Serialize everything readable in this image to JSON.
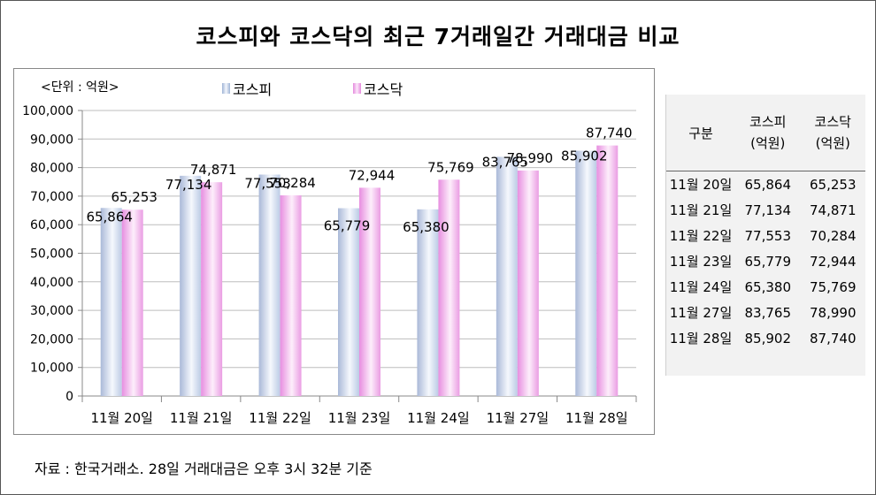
{
  "page": {
    "title": "코스피와 코스닥의 최근 7거래일간 거래대금 비교",
    "source": "자료 : 한국거래소. 28일 거래대금은 오후 3시 32분 기준"
  },
  "chart_data": {
    "type": "bar",
    "unit_label": "<단위 : 억원>",
    "categories": [
      "11월 20일",
      "11월 21일",
      "11월 22일",
      "11월 23일",
      "11월 24일",
      "11월 27일",
      "11월 28일"
    ],
    "series": [
      {
        "name": "코스피",
        "values": [
          65864,
          77134,
          77553,
          65779,
          65380,
          83765,
          85902
        ],
        "color": "#c5d4ea"
      },
      {
        "name": "코스닥",
        "values": [
          65253,
          74871,
          70284,
          72944,
          75769,
          78990,
          87740
        ],
        "color": "#f0a6e8"
      }
    ],
    "value_labels": {
      "kospi": [
        "65,864",
        "77,134",
        "77,553",
        "65,779",
        "65,380",
        "83,765",
        "85,902"
      ],
      "kosdaq": [
        "65,253",
        "74,871",
        "70,284",
        "72,944",
        "75,769",
        "78,990",
        "87,740"
      ]
    },
    "y_ticks": [
      "0",
      "10,000",
      "20,000",
      "30,000",
      "40,000",
      "50,000",
      "60,000",
      "70,000",
      "80,000",
      "90,000",
      "100,000"
    ],
    "ylim": [
      0,
      100000
    ],
    "grid": true,
    "legend": "top"
  },
  "table": {
    "header": {
      "gubun": "구분",
      "kospi_name": "코스피",
      "kospi_unit": "(억원)",
      "kosdaq_name": "코스닥",
      "kosdaq_unit": "(억원)"
    },
    "rows": [
      {
        "date": "11월 20일",
        "kospi": "65,864",
        "kosdaq": "65,253"
      },
      {
        "date": "11월 21일",
        "kospi": "77,134",
        "kosdaq": "74,871"
      },
      {
        "date": "11월 22일",
        "kospi": "77,553",
        "kosdaq": "70,284"
      },
      {
        "date": "11월 23일",
        "kospi": "65,779",
        "kosdaq": "72,944"
      },
      {
        "date": "11월 24일",
        "kospi": "65,380",
        "kosdaq": "75,769"
      },
      {
        "date": "11월 27일",
        "kospi": "83,765",
        "kosdaq": "78,990"
      },
      {
        "date": "11월 28일",
        "kospi": "85,902",
        "kosdaq": "87,740"
      }
    ]
  }
}
